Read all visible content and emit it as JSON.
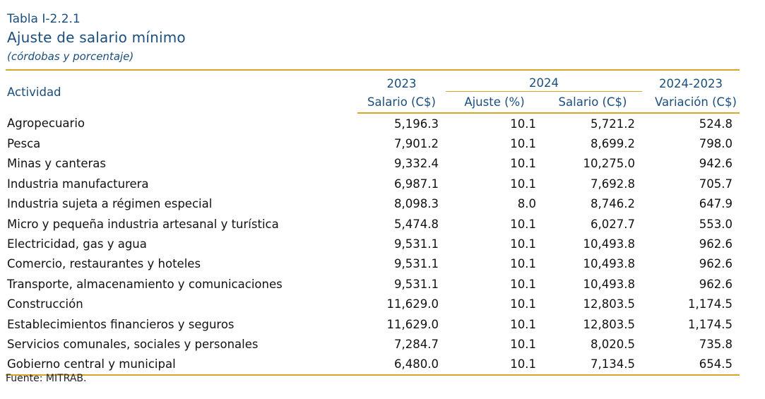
{
  "header": {
    "table_number": "Tabla I-2.2.1",
    "title": "Ajuste de salario mínimo",
    "subtitle": "(córdobas y porcentaje)"
  },
  "table": {
    "row_header": "Actividad",
    "year_headers": [
      "2023",
      "2024",
      "2024-2023"
    ],
    "column_headers": [
      "Salario (C$)",
      "Ajuste (%)",
      "Salario (C$)",
      "Variación (C$)"
    ],
    "rows": [
      {
        "name": "Agropecuario",
        "values": [
          "5,196.3",
          "10.1",
          "5,721.2",
          "524.8"
        ]
      },
      {
        "name": "Pesca",
        "values": [
          "7,901.2",
          "10.1",
          "8,699.2",
          "798.0"
        ]
      },
      {
        "name": "Minas y canteras",
        "values": [
          "9,332.4",
          "10.1",
          "10,275.0",
          "942.6"
        ]
      },
      {
        "name": "Industria manufacturera",
        "values": [
          "6,987.1",
          "10.1",
          "7,692.8",
          "705.7"
        ]
      },
      {
        "name": "Industria sujeta a régimen especial",
        "values": [
          "8,098.3",
          "8.0",
          "8,746.2",
          "647.9"
        ]
      },
      {
        "name": "Micro y pequeña industria artesanal y turística",
        "values": [
          "5,474.8",
          "10.1",
          "6,027.7",
          "553.0"
        ]
      },
      {
        "name": "Electricidad, gas y agua",
        "values": [
          "9,531.1",
          "10.1",
          "10,493.8",
          "962.6"
        ]
      },
      {
        "name": "Comercio, restaurantes y hoteles",
        "values": [
          "9,531.1",
          "10.1",
          "10,493.8",
          "962.6"
        ]
      },
      {
        "name": "Transporte, almacenamiento y comunicaciones",
        "values": [
          "9,531.1",
          "10.1",
          "10,493.8",
          "962.6"
        ]
      },
      {
        "name": "Construcción",
        "values": [
          "11,629.0",
          "10.1",
          "12,803.5",
          "1,174.5"
        ]
      },
      {
        "name": "Establecimientos financieros y seguros",
        "values": [
          "11,629.0",
          "10.1",
          "12,803.5",
          "1,174.5"
        ]
      },
      {
        "name": "Servicios comunales, sociales y personales",
        "values": [
          "7,284.7",
          "10.1",
          "8,020.5",
          "735.8"
        ]
      },
      {
        "name": "Gobierno central y municipal",
        "values": [
          "6,480.0",
          "10.1",
          "7,134.5",
          "654.5"
        ]
      }
    ]
  },
  "footer": {
    "source": "Fuente: MITRAB."
  },
  "colors": {
    "heading_blue": "#1b4e7c",
    "rule_gold": "#d6a62a"
  }
}
